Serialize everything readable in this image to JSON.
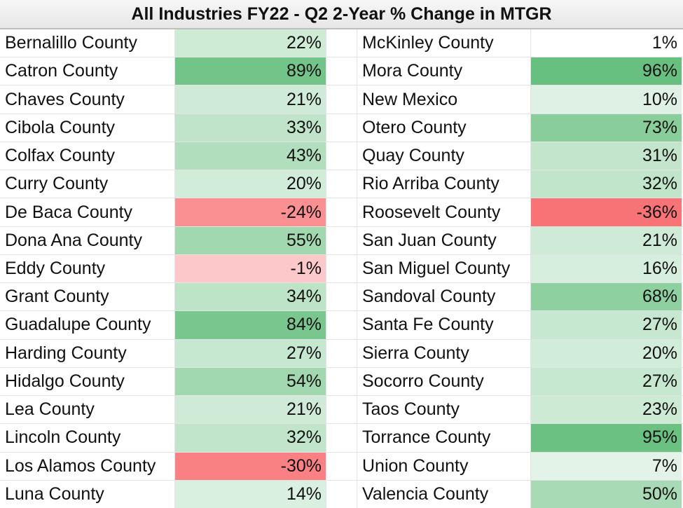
{
  "chart_data": {
    "type": "table",
    "title": "All Industries FY22 - Q2 2-Year % Change in MTGR",
    "left": [
      {
        "name": "Bernalillo County",
        "label": "22%",
        "value": 22
      },
      {
        "name": "Catron County",
        "label": "89%",
        "value": 89
      },
      {
        "name": "Chaves County",
        "label": "21%",
        "value": 21
      },
      {
        "name": "Cibola County",
        "label": "33%",
        "value": 33
      },
      {
        "name": "Colfax County",
        "label": "43%",
        "value": 43
      },
      {
        "name": "Curry County",
        "label": "20%",
        "value": 20
      },
      {
        "name": "De Baca County",
        "label": "-24%",
        "value": -24
      },
      {
        "name": "Dona Ana County",
        "label": "55%",
        "value": 55
      },
      {
        "name": "Eddy County",
        "label": "-1%",
        "value": -1
      },
      {
        "name": "Grant County",
        "label": "34%",
        "value": 34
      },
      {
        "name": "Guadalupe County",
        "label": "84%",
        "value": 84
      },
      {
        "name": "Harding County",
        "label": "27%",
        "value": 27
      },
      {
        "name": "Hidalgo County",
        "label": "54%",
        "value": 54
      },
      {
        "name": "Lea County",
        "label": "21%",
        "value": 21
      },
      {
        "name": "Lincoln County",
        "label": "32%",
        "value": 32
      },
      {
        "name": "Los Alamos County",
        "label": "-30%",
        "value": -30
      },
      {
        "name": "Luna County",
        "label": "14%",
        "value": 14
      }
    ],
    "right": [
      {
        "name": "McKinley County",
        "label": "1%",
        "value": 1
      },
      {
        "name": "Mora County",
        "label": "96%",
        "value": 96
      },
      {
        "name": "New Mexico",
        "label": "10%",
        "value": 10
      },
      {
        "name": "Otero County",
        "label": "73%",
        "value": 73
      },
      {
        "name": "Quay County",
        "label": "31%",
        "value": 31
      },
      {
        "name": "Rio Arriba County",
        "label": "32%",
        "value": 32
      },
      {
        "name": "Roosevelt County",
        "label": "-36%",
        "value": -36
      },
      {
        "name": "San Juan County",
        "label": "21%",
        "value": 21
      },
      {
        "name": "San Miguel County",
        "label": "16%",
        "value": 16
      },
      {
        "name": "Sandoval County",
        "label": "68%",
        "value": 68
      },
      {
        "name": "Santa Fe County",
        "label": "27%",
        "value": 27
      },
      {
        "name": "Sierra County",
        "label": "20%",
        "value": 20
      },
      {
        "name": "Socorro County",
        "label": "27%",
        "value": 27
      },
      {
        "name": "Taos County",
        "label": "23%",
        "value": 23
      },
      {
        "name": "Torrance County",
        "label": "95%",
        "value": 95
      },
      {
        "name": "Union County",
        "label": "7%",
        "value": 7
      },
      {
        "name": "Valencia County",
        "label": "50%",
        "value": 50
      }
    ],
    "colors": {
      "positive_max": "#63be7b",
      "negative_max": "#f8696b",
      "neutral": "#ffffff"
    }
  }
}
